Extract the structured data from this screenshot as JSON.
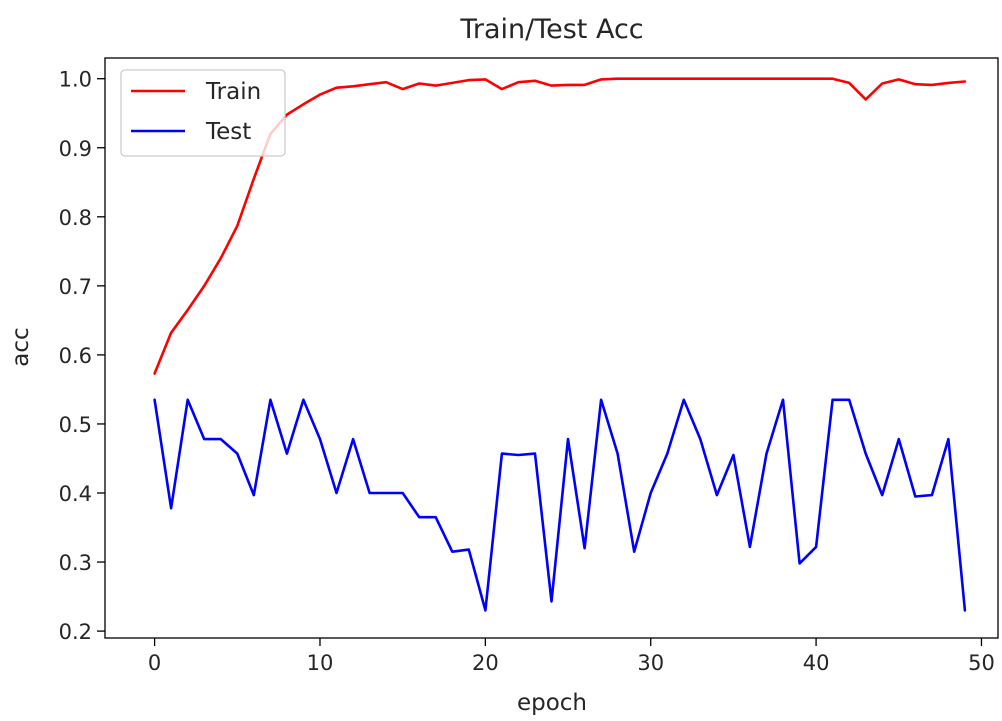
{
  "chart_data": {
    "type": "line",
    "title": "Train/Test Acc",
    "xlabel": "epoch",
    "ylabel": "acc",
    "xlim": [
      -3,
      51
    ],
    "ylim": [
      0.19,
      1.03
    ],
    "xticks": [
      0,
      10,
      20,
      30,
      40,
      50
    ],
    "yticks": [
      0.2,
      0.3,
      0.4,
      0.5,
      0.6,
      0.7,
      0.8,
      0.9,
      1.0
    ],
    "xtick_labels": [
      "0",
      "10",
      "20",
      "30",
      "40",
      "50"
    ],
    "ytick_labels": [
      "0.2",
      "0.3",
      "0.4",
      "0.5",
      "0.6",
      "0.7",
      "0.8",
      "0.9",
      "1.0"
    ],
    "grid": false,
    "legend": "top-left",
    "x": [
      0,
      1,
      2,
      3,
      4,
      5,
      6,
      7,
      8,
      9,
      10,
      11,
      12,
      13,
      14,
      15,
      16,
      17,
      18,
      19,
      20,
      21,
      22,
      23,
      24,
      25,
      26,
      27,
      28,
      29,
      30,
      31,
      32,
      33,
      34,
      35,
      36,
      37,
      38,
      39,
      40,
      41,
      42,
      43,
      44,
      45,
      46,
      47,
      48,
      49
    ],
    "series": [
      {
        "name": "Train",
        "color": "#ff0000",
        "values": [
          0.573,
          0.632,
          0.665,
          0.7,
          0.74,
          0.787,
          0.855,
          0.92,
          0.948,
          0.963,
          0.977,
          0.987,
          0.989,
          0.992,
          0.995,
          0.985,
          0.993,
          0.99,
          0.994,
          0.998,
          0.999,
          0.985,
          0.995,
          0.997,
          0.99,
          0.991,
          0.991,
          0.999,
          1.0,
          1.0,
          1.0,
          1.0,
          1.0,
          1.0,
          1.0,
          1.0,
          1.0,
          1.0,
          1.0,
          1.0,
          1.0,
          1.0,
          0.994,
          0.97,
          0.993,
          0.999,
          0.992,
          0.991,
          0.994,
          0.996
        ]
      },
      {
        "name": "Test",
        "color": "#0000ff",
        "values": [
          0.535,
          0.378,
          0.535,
          0.478,
          0.478,
          0.457,
          0.397,
          0.535,
          0.457,
          0.535,
          0.478,
          0.4,
          0.478,
          0.4,
          0.4,
          0.4,
          0.365,
          0.365,
          0.315,
          0.318,
          0.23,
          0.457,
          0.455,
          0.457,
          0.243,
          0.478,
          0.32,
          0.535,
          0.457,
          0.315,
          0.4,
          0.457,
          0.535,
          0.478,
          0.397,
          0.455,
          0.322,
          0.457,
          0.535,
          0.298,
          0.322,
          0.535,
          0.535,
          0.457,
          0.397,
          0.478,
          0.395,
          0.397,
          0.478,
          0.23
        ]
      }
    ]
  }
}
